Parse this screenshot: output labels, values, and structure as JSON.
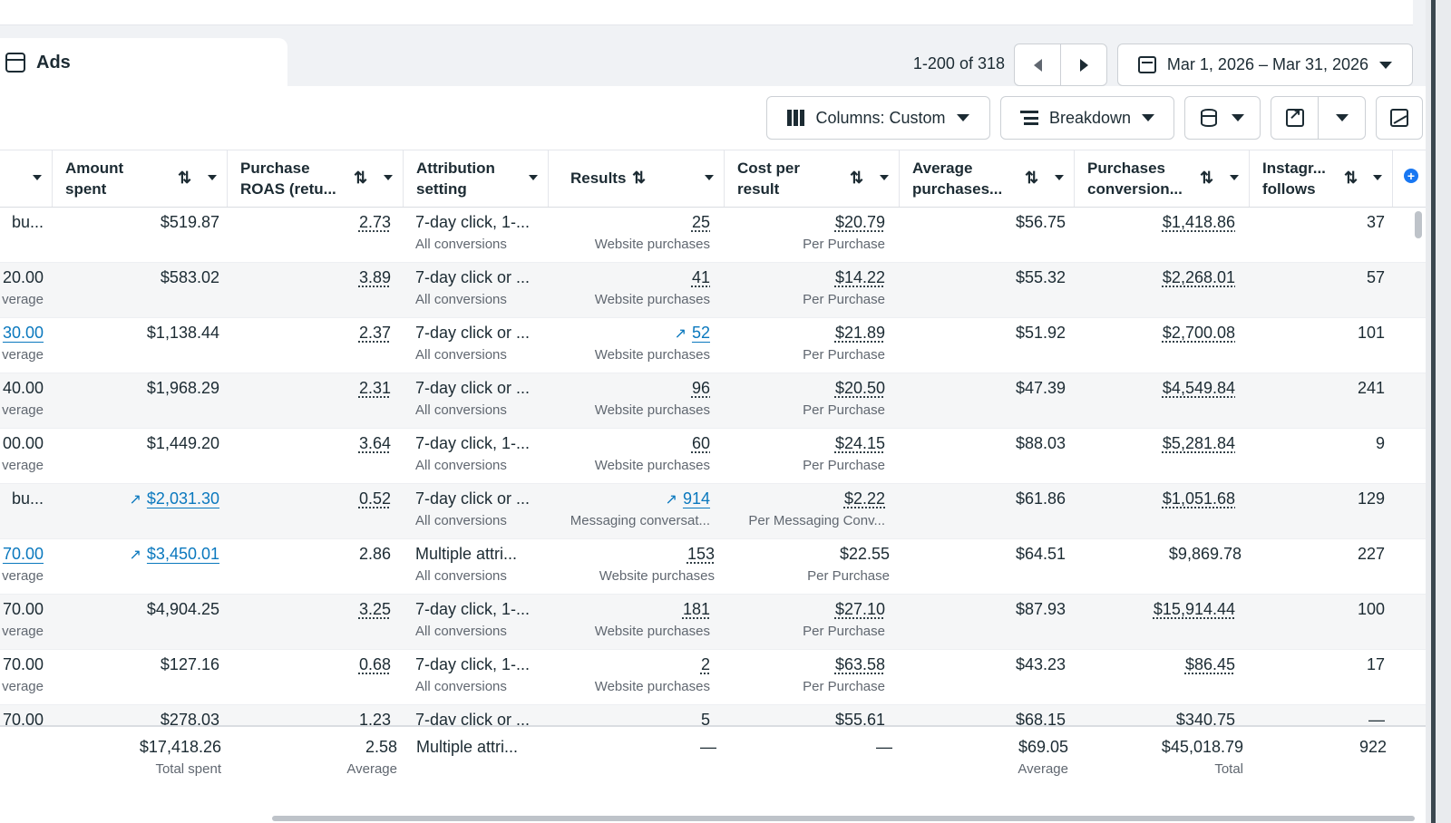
{
  "tab": {
    "label": "Ads"
  },
  "pager": {
    "range_text": "1-200 of 318"
  },
  "date_range": {
    "label": "Mar 1, 2026 – Mar 31, 2026"
  },
  "toolbar": {
    "columns_label": "Columns: Custom",
    "breakdown_label": "Breakdown"
  },
  "headers": [
    {
      "line1": "Amount",
      "line2": "spent"
    },
    {
      "line1": "Purchase",
      "line2": "ROAS (retu..."
    },
    {
      "line1": "Attribution",
      "line2": "setting"
    },
    {
      "line1": "Results",
      "line2": ""
    },
    {
      "line1": "Cost per",
      "line2": "result"
    },
    {
      "line1": "Average",
      "line2": "purchases..."
    },
    {
      "line1": "Purchases",
      "line2": "conversion..."
    },
    {
      "line1": "Instagr...",
      "line2": "follows"
    }
  ],
  "rows": [
    {
      "c0": "bu...",
      "c0s": "",
      "amount": "$519.87",
      "roas": "2.73",
      "attr": "7-day click, 1-...",
      "attr_sub": "All conversions",
      "results": "25",
      "results_sub": "Website purchases",
      "cpr": "$20.79",
      "cpr_sub": "Per Purchase",
      "avg": "$56.75",
      "conv": "$1,418.86",
      "ig": "37"
    },
    {
      "c0": "20.00",
      "c0s": "verage",
      "amount": "$583.02",
      "roas": "3.89",
      "attr": "7-day click or ...",
      "attr_sub": "All conversions",
      "results": "41",
      "results_sub": "Website purchases",
      "cpr": "$14.22",
      "cpr_sub": "Per Purchase",
      "avg": "$55.32",
      "conv": "$2,268.01",
      "ig": "57"
    },
    {
      "c0": "30.00",
      "c0s": "verage",
      "amount": "$1,138.44",
      "roas": "2.37",
      "attr": "7-day click or ...",
      "attr_sub": "All conversions",
      "results": "52",
      "results_sub": "Website purchases",
      "cpr": "$21.89",
      "cpr_sub": "Per Purchase",
      "avg": "$51.92",
      "conv": "$2,700.08",
      "ig": "101"
    },
    {
      "c0": "40.00",
      "c0s": "verage",
      "amount": "$1,968.29",
      "roas": "2.31",
      "attr": "7-day click or ...",
      "attr_sub": "All conversions",
      "results": "96",
      "results_sub": "Website purchases",
      "cpr": "$20.50",
      "cpr_sub": "Per Purchase",
      "avg": "$47.39",
      "conv": "$4,549.84",
      "ig": "241"
    },
    {
      "c0": "00.00",
      "c0s": "verage",
      "amount": "$1,449.20",
      "roas": "3.64",
      "attr": "7-day click, 1-...",
      "attr_sub": "All conversions",
      "results": "60",
      "results_sub": "Website purchases",
      "cpr": "$24.15",
      "cpr_sub": "Per Purchase",
      "avg": "$88.03",
      "conv": "$5,281.84",
      "ig": "9"
    },
    {
      "c0": "bu...",
      "c0s": "",
      "amount": "$2,031.30",
      "roas": "0.52",
      "attr": "7-day click or ...",
      "attr_sub": "All conversions",
      "results": "914",
      "results_sub": "Messaging conversat...",
      "cpr": "$2.22",
      "cpr_sub": "Per Messaging Conv...",
      "avg": "$61.86",
      "conv": "$1,051.68",
      "ig": "129"
    },
    {
      "c0": "70.00",
      "c0s": "verage",
      "amount": "$3,450.01",
      "roas": "2.86",
      "attr": "Multiple attri...",
      "attr_sub": "All conversions",
      "results": "153",
      "results_sub": "Website purchases",
      "cpr": "$22.55",
      "cpr_sub": "Per Purchase",
      "avg": "$64.51",
      "conv": "$9,869.78",
      "ig": "227"
    },
    {
      "c0": "70.00",
      "c0s": "verage",
      "amount": "$4,904.25",
      "roas": "3.25",
      "attr": "7-day click, 1-...",
      "attr_sub": "All conversions",
      "results": "181",
      "results_sub": "Website purchases",
      "cpr": "$27.10",
      "cpr_sub": "Per Purchase",
      "avg": "$87.93",
      "conv": "$15,914.44",
      "ig": "100"
    },
    {
      "c0": "70.00",
      "c0s": "verage",
      "amount": "$127.16",
      "roas": "0.68",
      "attr": "7-day click, 1-...",
      "attr_sub": "All conversions",
      "results": "2",
      "results_sub": "Website purchases",
      "cpr": "$63.58",
      "cpr_sub": "Per Purchase",
      "avg": "$43.23",
      "conv": "$86.45",
      "ig": "17"
    },
    {
      "c0": "70.00",
      "c0s": "",
      "amount": "$278.03",
      "roas": "1.23",
      "attr": "7-day click or ...",
      "attr_sub": "",
      "results": "5",
      "results_sub": "",
      "cpr": "$55.61",
      "cpr_sub": "",
      "avg": "$68.15",
      "conv": "$340.75",
      "ig": "—"
    }
  ],
  "totals": {
    "amount": "$17,418.26",
    "amount_sub": "Total spent",
    "roas": "2.58",
    "roas_sub": "Average",
    "attr": "Multiple attri...",
    "results": "—",
    "cpr": "—",
    "avg": "$69.05",
    "avg_sub": "Average",
    "conv": "$45,018.79",
    "conv_sub": "Total",
    "ig": "922"
  },
  "colors": {
    "link": "#0a78be",
    "accent": "#1877f2"
  }
}
